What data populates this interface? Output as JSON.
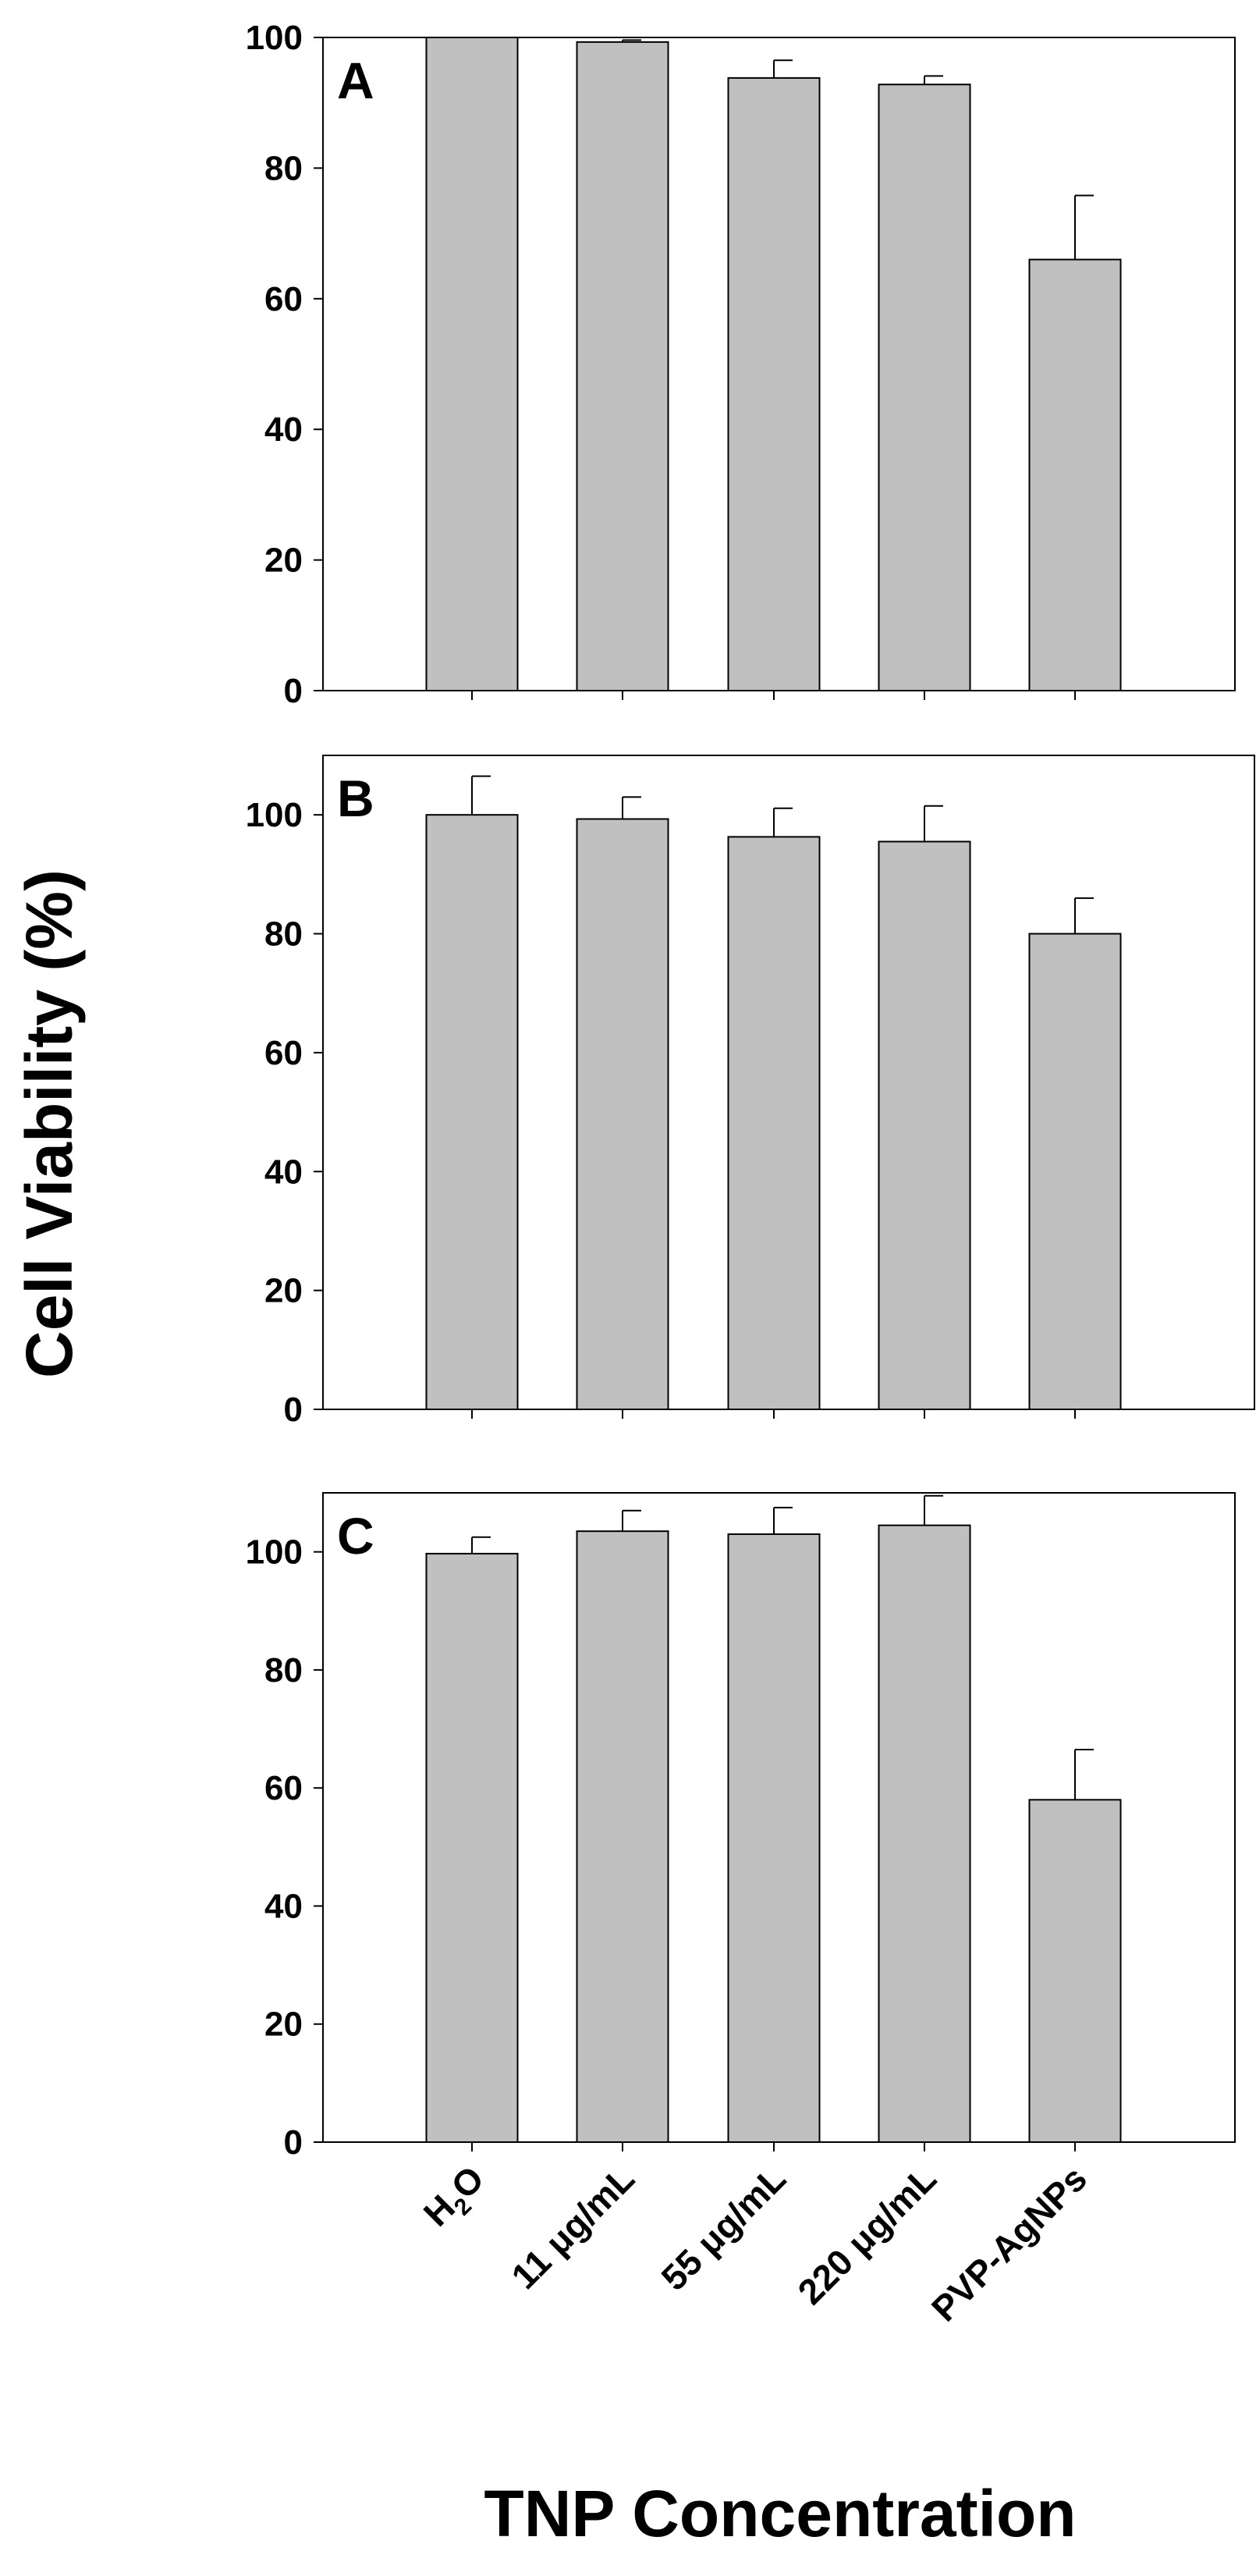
{
  "chart_data": {
    "type": "bar",
    "ylabel": "Cell  Viability (%)",
    "xlabel": "TNP  Concentration",
    "categories": [
      "H2O",
      "11 μg/mL",
      "55 μg/mL",
      "220 μg/mL",
      "PVP-AgNPs"
    ],
    "category_labels": [
      {
        "main": "H",
        "sub": "2",
        "rest": "O"
      },
      {
        "main": "11 μg/mL",
        "sub": "",
        "rest": ""
      },
      {
        "main": "55 μg/mL",
        "sub": "",
        "rest": ""
      },
      {
        "main": "220 μg/mL",
        "sub": "",
        "rest": ""
      },
      {
        "main": "PVP-AgNPs",
        "sub": "",
        "rest": ""
      }
    ],
    "bar_color": "#c0c0c0",
    "grid": false,
    "yticks": [
      0,
      20,
      40,
      60,
      80,
      100
    ],
    "panels": [
      {
        "label": "A",
        "ylim": [
          0,
          100
        ],
        "values": [
          100,
          99.3,
          93.8,
          92.8,
          66
        ],
        "errors": [
          0,
          0.3,
          2.7,
          1.3,
          9.8
        ]
      },
      {
        "label": "B",
        "ylim": [
          0,
          110
        ],
        "values": [
          100,
          99.3,
          96.3,
          95.5,
          80
        ],
        "errors": [
          6.5,
          3.7,
          4.8,
          6,
          6
        ]
      },
      {
        "label": "C",
        "ylim": [
          0,
          110
        ],
        "values": [
          99.7,
          103.5,
          103,
          104.5,
          58
        ],
        "errors": [
          2.8,
          3.5,
          4.5,
          5,
          8.5
        ]
      }
    ]
  }
}
